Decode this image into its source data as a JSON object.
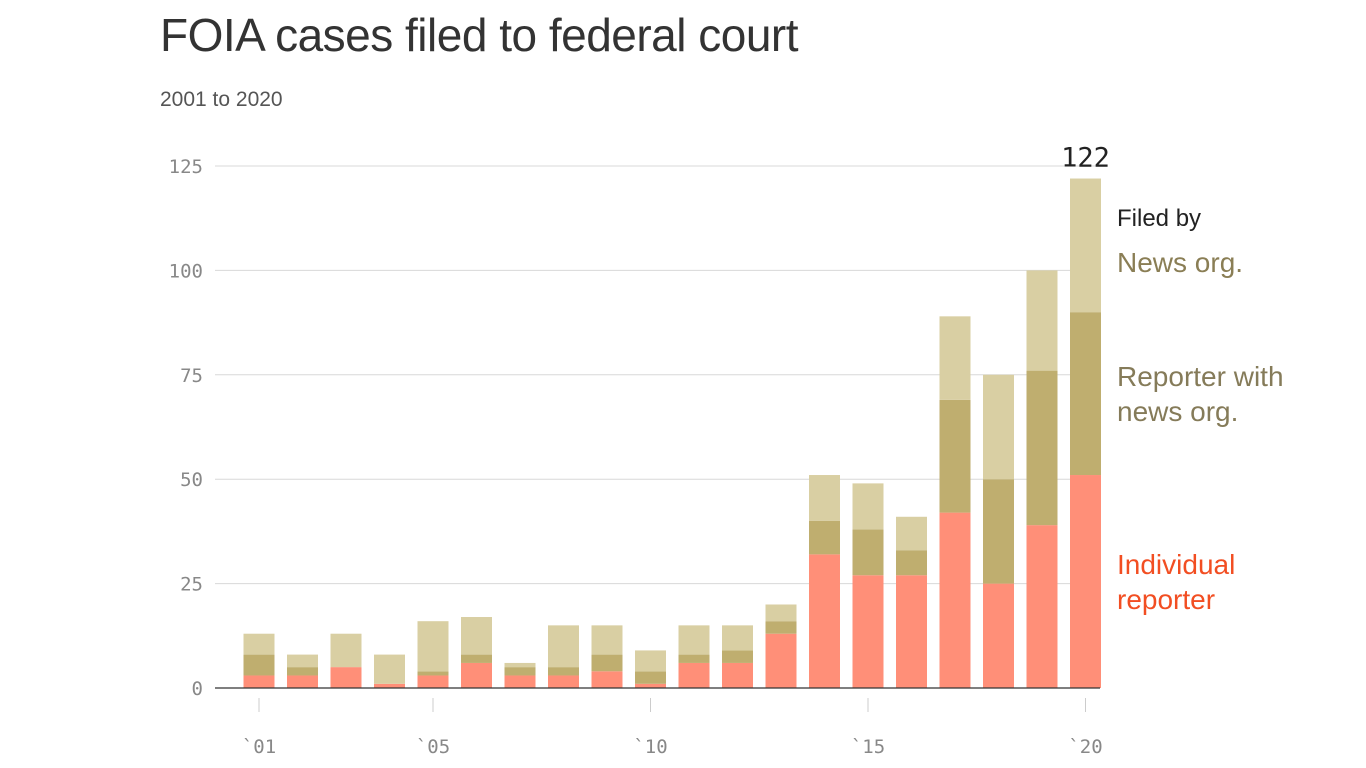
{
  "chart_data": {
    "type": "stacked_bar",
    "title": "FOIA cases filed to federal court",
    "subtitle": "2001 to 2020",
    "categories": [
      "`01",
      null,
      null,
      null,
      "`05",
      null,
      null,
      null,
      null,
      "`10",
      null,
      null,
      null,
      null,
      "`15",
      null,
      null,
      null,
      null,
      "`20"
    ],
    "legend_title": "Filed by",
    "series": [
      {
        "name": "Individual reporter",
        "color": "#ff8f78",
        "label_color": "#f24e22",
        "values": [
          3,
          3,
          5,
          1,
          3,
          6,
          3,
          3,
          4,
          1,
          6,
          6,
          13,
          32,
          27,
          27,
          42,
          25,
          39,
          51
        ]
      },
      {
        "name": "Reporter with news org.",
        "color": "#bfae6f",
        "label_color": "#857b59",
        "values": [
          5,
          2,
          0,
          0,
          1,
          2,
          2,
          2,
          4,
          3,
          2,
          3,
          3,
          8,
          11,
          6,
          27,
          25,
          37,
          39
        ]
      },
      {
        "name": "News org.",
        "color": "#d9cfa3",
        "label_color": "#8a7e55",
        "values": [
          5,
          3,
          8,
          7,
          12,
          9,
          1,
          10,
          7,
          5,
          7,
          6,
          4,
          11,
          11,
          8,
          20,
          25,
          24,
          32
        ]
      }
    ],
    "annotations": [
      {
        "text": "122",
        "value": 122
      }
    ],
    "ylim": [
      0,
      125
    ],
    "yticks": [
      0,
      25,
      50,
      75,
      100,
      125
    ],
    "grid": true
  }
}
